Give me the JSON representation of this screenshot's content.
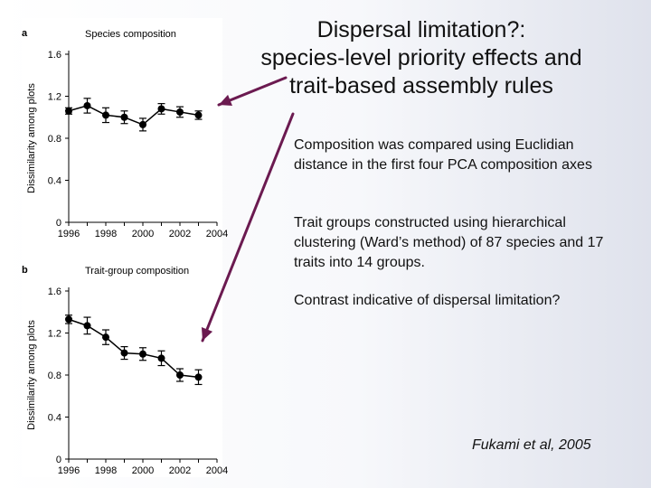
{
  "title_lines": [
    "Dispersal limitation?:",
    "species-level priority effects and",
    "trait-based assembly rules"
  ],
  "notes": [
    "Composition was compared using Euclidian distance in the first four PCA composition axes",
    "Trait groups constructed using hierarchical clustering (Ward’s method) of 87 species and 17 traits into 14 groups.",
    "Contrast indicative of dispersal limitation?"
  ],
  "citation": "Fukami et al, 2005",
  "colors": {
    "arrow": "#6b1a50",
    "line": "#000000"
  },
  "chart_data": [
    {
      "type": "line",
      "panel": "a",
      "title": "Species composition",
      "ylabel": "Dissimilarity among plots",
      "xlabel": "",
      "x": [
        1996,
        1997,
        1998,
        1999,
        2000,
        2001,
        2002,
        2003,
        2004
      ],
      "values": [
        1.06,
        1.11,
        1.02,
        1.0,
        0.93,
        1.08,
        1.05,
        1.02,
        null
      ],
      "errors": [
        0.03,
        0.07,
        0.07,
        0.06,
        0.06,
        0.05,
        0.05,
        0.04,
        null
      ],
      "xticks": [
        "1996",
        "1998",
        "2000",
        "2002",
        "2004"
      ],
      "yticks": [
        "0",
        "0.4",
        "0.8",
        "1.2",
        "1.6"
      ],
      "ylim": [
        0,
        1.6
      ],
      "xlim": [
        1996,
        2004
      ],
      "grid": false
    },
    {
      "type": "line",
      "panel": "b",
      "title": "Trait-group composition",
      "ylabel": "Dissimilarity among plots",
      "xlabel": "",
      "x": [
        1996,
        1997,
        1998,
        1999,
        2000,
        2001,
        2002,
        2003,
        2004
      ],
      "values": [
        1.33,
        1.27,
        1.16,
        1.01,
        1.0,
        0.96,
        0.8,
        0.78,
        null
      ],
      "errors": [
        0.04,
        0.08,
        0.07,
        0.06,
        0.06,
        0.07,
        0.06,
        0.07,
        null
      ],
      "xticks": [
        "1996",
        "1998",
        "2000",
        "2002",
        "2004"
      ],
      "yticks": [
        "0",
        "0.4",
        "0.8",
        "1.2",
        "1.6"
      ],
      "ylim": [
        0,
        1.6
      ],
      "xlim": [
        1996,
        2004
      ],
      "grid": false
    }
  ]
}
